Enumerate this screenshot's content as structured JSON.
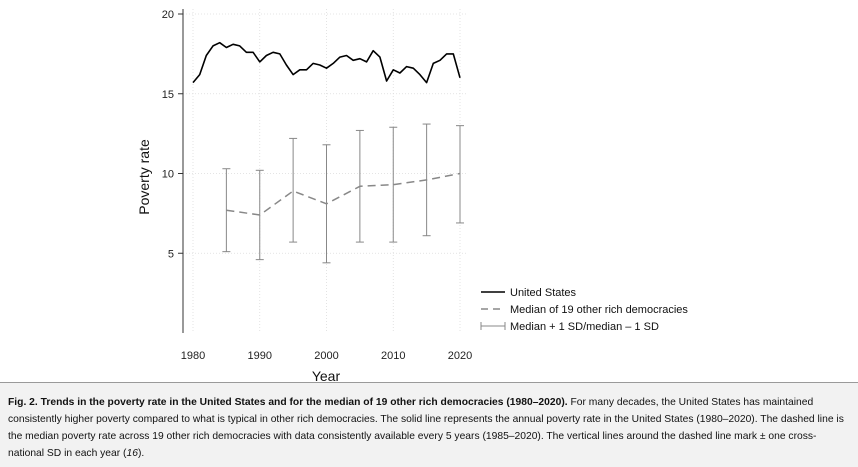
{
  "chart_data": {
    "type": "line",
    "xlabel": "Year",
    "ylabel": "Poverty rate",
    "xlim": [
      1980,
      2020
    ],
    "ylim": [
      0,
      20
    ],
    "xticks": [
      1980,
      1990,
      2000,
      2010,
      2020
    ],
    "yticks": [
      5,
      10,
      15,
      20
    ],
    "grid": true,
    "legend_position": "bottom-right",
    "series": [
      {
        "name": "United States",
        "style": "solid",
        "color": "#000000",
        "x": [
          1980,
          1981,
          1982,
          1983,
          1984,
          1985,
          1986,
          1987,
          1988,
          1989,
          1990,
          1991,
          1992,
          1993,
          1994,
          1995,
          1996,
          1997,
          1998,
          1999,
          2000,
          2001,
          2002,
          2003,
          2004,
          2005,
          2006,
          2007,
          2008,
          2009,
          2010,
          2011,
          2012,
          2013,
          2014,
          2015,
          2016,
          2017,
          2018,
          2019,
          2020
        ],
        "y": [
          15.7,
          16.2,
          17.4,
          18.0,
          18.2,
          17.9,
          18.1,
          18.0,
          17.6,
          17.6,
          17.0,
          17.4,
          17.6,
          17.5,
          16.8,
          16.2,
          16.5,
          16.5,
          16.9,
          16.8,
          16.6,
          16.9,
          17.3,
          17.4,
          17.1,
          17.2,
          17.0,
          17.7,
          17.3,
          15.8,
          16.5,
          16.3,
          16.7,
          16.6,
          16.2,
          15.7,
          16.9,
          17.1,
          17.5,
          17.5,
          16.0
        ]
      },
      {
        "name": "Median of 19 other rich democracies",
        "style": "dashed",
        "color": "#888888",
        "x": [
          1985,
          1990,
          1995,
          2000,
          2005,
          2010,
          2015,
          2020
        ],
        "y": [
          7.7,
          7.4,
          8.9,
          8.1,
          9.2,
          9.3,
          9.6,
          10.0
        ]
      },
      {
        "name": "Median + 1 SD/median – 1 SD",
        "style": "errorbar",
        "color": "#888888",
        "x": [
          1985,
          1990,
          1995,
          2000,
          2005,
          2010,
          2015,
          2020
        ],
        "low": [
          5.1,
          4.6,
          5.7,
          4.4,
          5.7,
          5.7,
          6.1,
          6.9
        ],
        "high": [
          10.3,
          10.2,
          12.2,
          11.8,
          12.7,
          12.9,
          13.1,
          13.0
        ]
      }
    ]
  },
  "caption": {
    "bold": "Fig. 2. Trends in the poverty rate in the United States and for the median of 19 other rich democracies (1980–2020).",
    "text_1": " For many decades, the United States has maintained consistently higher poverty compared to what is typical in other rich democracies. The solid line represents the annual poverty rate in the United States (1980–2020). The dashed line is the median poverty rate across 19 other rich democracies with data consistently available every 5 years (1985–2020). The vertical lines around the dashed line mark ± one cross-national SD in each year (",
    "ref": "16",
    "text_2": ")."
  },
  "colors": {
    "caption_background": "#f2f2f2",
    "grid": "#dcdcdc"
  }
}
